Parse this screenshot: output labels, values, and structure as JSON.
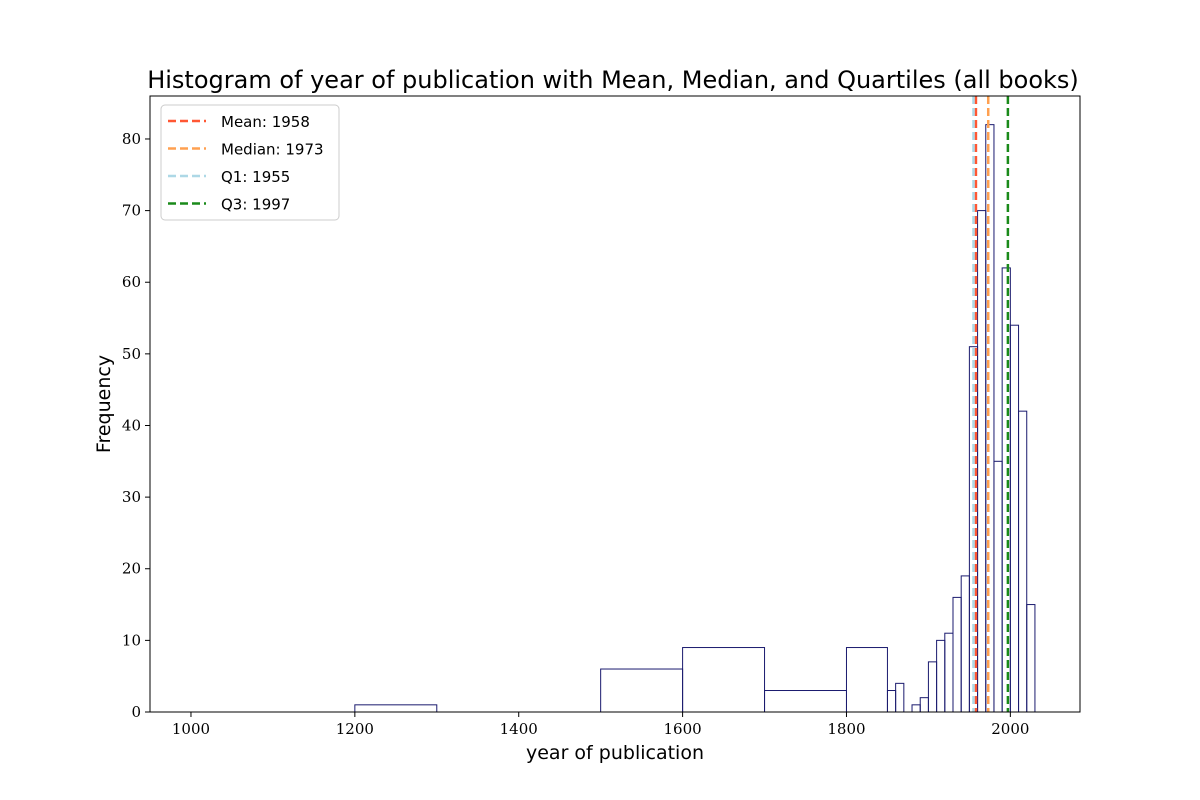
{
  "chart_data": {
    "type": "bar",
    "title": "Histogram of year of publication with Mean, Median, and Quartiles (all books)",
    "xlabel": "year of publication",
    "ylabel": "Frequency",
    "xlim": [
      950,
      2085
    ],
    "ylim": [
      0,
      86
    ],
    "xticks": [
      1000,
      1200,
      1400,
      1600,
      1800,
      2000
    ],
    "yticks": [
      0,
      10,
      20,
      30,
      40,
      50,
      60,
      70,
      80
    ],
    "grid": false,
    "legend_position": "top-left",
    "bar_edge_color": "#1a1a6e",
    "bins": [
      {
        "start": 1200,
        "end": 1300,
        "count": 1
      },
      {
        "start": 1500,
        "end": 1600,
        "count": 6
      },
      {
        "start": 1600,
        "end": 1700,
        "count": 9
      },
      {
        "start": 1700,
        "end": 1800,
        "count": 3
      },
      {
        "start": 1800,
        "end": 1850,
        "count": 9
      },
      {
        "start": 1850,
        "end": 1860,
        "count": 3
      },
      {
        "start": 1860,
        "end": 1870,
        "count": 4
      },
      {
        "start": 1880,
        "end": 1890,
        "count": 1
      },
      {
        "start": 1890,
        "end": 1900,
        "count": 2
      },
      {
        "start": 1900,
        "end": 1910,
        "count": 7
      },
      {
        "start": 1910,
        "end": 1920,
        "count": 10
      },
      {
        "start": 1920,
        "end": 1930,
        "count": 11
      },
      {
        "start": 1930,
        "end": 1940,
        "count": 16
      },
      {
        "start": 1940,
        "end": 1950,
        "count": 19
      },
      {
        "start": 1950,
        "end": 1960,
        "count": 51
      },
      {
        "start": 1960,
        "end": 1970,
        "count": 70
      },
      {
        "start": 1970,
        "end": 1980,
        "count": 82
      },
      {
        "start": 1980,
        "end": 1990,
        "count": 35
      },
      {
        "start": 1990,
        "end": 2000,
        "count": 62
      },
      {
        "start": 2000,
        "end": 2010,
        "count": 54
      },
      {
        "start": 2010,
        "end": 2020,
        "count": 42
      },
      {
        "start": 2020,
        "end": 2030,
        "count": 15
      }
    ],
    "reference_lines": [
      {
        "label": "Mean: 1958",
        "value": 1958,
        "color": "#ff5733"
      },
      {
        "label": "Median: 1973",
        "value": 1973,
        "color": "#ffa050"
      },
      {
        "label": "Q1: 1955",
        "value": 1955,
        "color": "#add8e6"
      },
      {
        "label": "Q3: 1997",
        "value": 1997,
        "color": "#1a8a1a"
      }
    ]
  }
}
